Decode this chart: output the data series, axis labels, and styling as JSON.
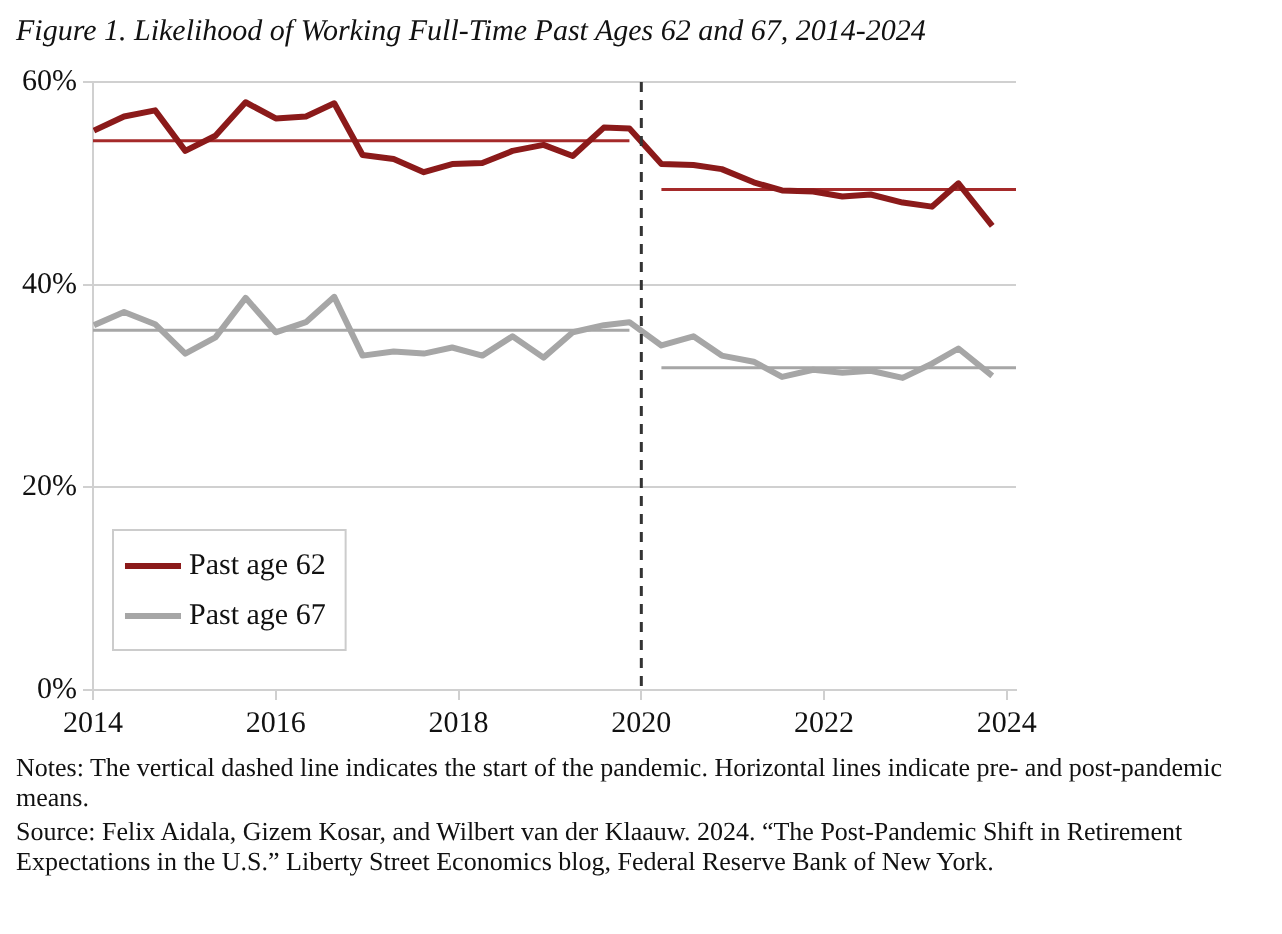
{
  "chart_data": {
    "type": "line",
    "title": "Figure 1. Likelihood of Working Full-Time Past Ages 62 and 67, 2014-2024",
    "xlim": [
      2014,
      2024.1
    ],
    "xticks": [
      2014,
      2016,
      2018,
      2020,
      2022,
      2024
    ],
    "ylim": [
      0,
      60
    ],
    "yticks": [
      {
        "value": 0,
        "label": "0%"
      },
      {
        "value": 20,
        "label": "20%"
      },
      {
        "value": 40,
        "label": "40%"
      },
      {
        "value": 60,
        "label": "60%"
      }
    ],
    "grid": "y",
    "legend": "bottom left",
    "marker": "none",
    "series": [
      {
        "name": "Past age 62",
        "color": "#8b1a1a",
        "x": [
          2014.01,
          2014.34,
          2014.68,
          2015.01,
          2015.34,
          2015.67,
          2016.0,
          2016.33,
          2016.64,
          2016.95,
          2017.29,
          2017.62,
          2017.93,
          2018.26,
          2018.59,
          2018.93,
          2019.25,
          2019.59,
          2019.87,
          2020.22,
          2020.57,
          2020.88,
          2021.23,
          2021.54,
          2021.88,
          2022.2,
          2022.51,
          2022.86,
          2023.18,
          2023.47,
          2023.84
        ],
        "values": [
          55.2,
          56.6,
          57.2,
          53.2,
          54.7,
          58.0,
          56.4,
          56.6,
          57.9,
          52.8,
          52.4,
          51.1,
          51.9,
          52.0,
          53.2,
          53.8,
          52.7,
          55.5,
          55.4,
          51.9,
          51.8,
          51.4,
          50.1,
          49.3,
          49.2,
          48.7,
          48.9,
          48.1,
          47.7,
          50.0,
          45.8
        ]
      },
      {
        "name": "Past age 67",
        "color": "#a6a6a6",
        "x": [
          2014.01,
          2014.34,
          2014.68,
          2015.01,
          2015.34,
          2015.67,
          2016.0,
          2016.33,
          2016.64,
          2016.95,
          2017.29,
          2017.62,
          2017.93,
          2018.26,
          2018.59,
          2018.93,
          2019.25,
          2019.59,
          2019.87,
          2020.22,
          2020.57,
          2020.88,
          2021.23,
          2021.54,
          2021.88,
          2022.2,
          2022.51,
          2022.86,
          2023.18,
          2023.47,
          2023.84
        ],
        "values": [
          36.0,
          37.3,
          36.1,
          33.2,
          34.8,
          38.7,
          35.3,
          36.3,
          38.8,
          33.0,
          33.4,
          33.2,
          33.8,
          33.0,
          34.9,
          32.8,
          35.3,
          36.0,
          36.3,
          34.0,
          34.9,
          33.0,
          32.4,
          30.9,
          31.6,
          31.3,
          31.5,
          30.8,
          32.2,
          33.7,
          31.0
        ]
      },
      {
        "type": "line",
        "color": "#a52a2a",
        "x": [
          2014,
          2019.87
        ],
        "values": [
          54.2,
          54.2
        ]
      },
      {
        "type": "line",
        "color": "#a52a2a",
        "x": [
          2020.22,
          2024.1
        ],
        "values": [
          49.4,
          49.4
        ]
      },
      {
        "type": "line",
        "color": "#a6a6a6",
        "x": [
          2014,
          2019.87
        ],
        "values": [
          35.5,
          35.5
        ]
      },
      {
        "type": "line",
        "color": "#a6a6a6",
        "x": [
          2020.22,
          2024.1
        ],
        "values": [
          31.8,
          31.8
        ]
      }
    ],
    "ref_lines": [
      {
        "axis": "x",
        "value": 2020,
        "color": "#333333",
        "line_style": "dashed"
      }
    ],
    "annotations": [
      "Notes: The vertical dashed line indicates the start of the pandemic.  Horizontal lines indicate pre- and post-pandemic means.",
      "Source: Felix Aidala, Gizem Kosar, and Wilbert van der Klaauw. 2024. “The Post-Pandemic Shift in Retirement Expectations in the U.S.” Liberty Street Economics blog, Federal Reserve Bank of New York."
    ]
  }
}
